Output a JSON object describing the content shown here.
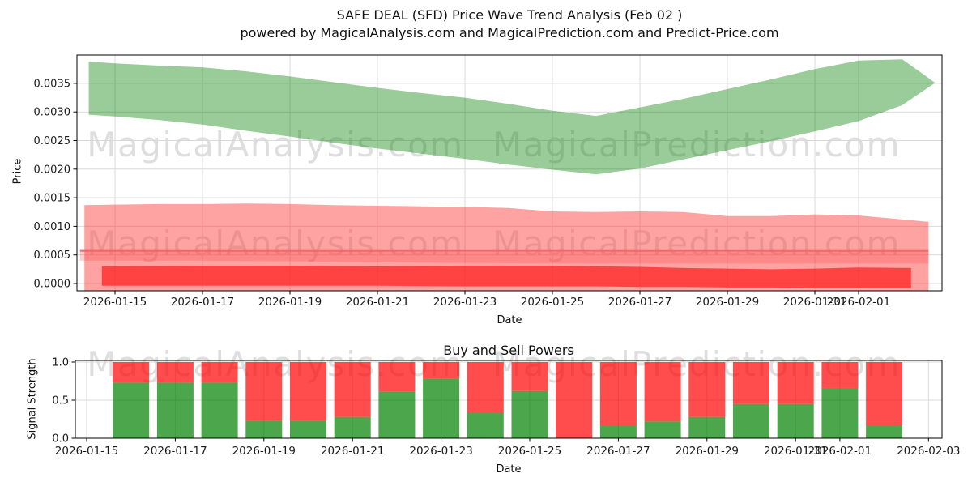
{
  "title": "SAFE DEAL (SFD) Price Wave Trend Analysis (Feb 02 )",
  "subtitle": "powered by MagicalAnalysis.com and MagicalPrediction.com and Predict-Price.com",
  "watermarks": {
    "analysis": "MagicalAnalysis.com",
    "prediction": "MagicalPrediction.com",
    "color": "rgba(0,0,0,0.13)"
  },
  "chart_data": [
    {
      "id": "price_wave",
      "type": "area",
      "xlabel": "Date",
      "ylabel": "Price",
      "ylim": [
        -0.00014,
        0.004
      ],
      "grid": true,
      "yticks": [
        {
          "label": "0.0000",
          "value": 0.0
        },
        {
          "label": "0.0005",
          "value": 0.0005
        },
        {
          "label": "0.0010",
          "value": 0.001
        },
        {
          "label": "0.0015",
          "value": 0.0015
        },
        {
          "label": "0.0020",
          "value": 0.002
        },
        {
          "label": "0.0025",
          "value": 0.0025
        },
        {
          "label": "0.0030",
          "value": 0.003
        },
        {
          "label": "0.0035",
          "value": 0.0035
        }
      ],
      "xticks": [
        {
          "label": "2026-01-15",
          "day": 15
        },
        {
          "label": "2026-01-17",
          "day": 17
        },
        {
          "label": "2026-01-19",
          "day": 19
        },
        {
          "label": "2026-01-21",
          "day": 21
        },
        {
          "label": "2026-01-23",
          "day": 23
        },
        {
          "label": "2026-01-25",
          "day": 25
        },
        {
          "label": "2026-01-27",
          "day": 27
        },
        {
          "label": "2026-01-29",
          "day": 29
        },
        {
          "label": "2026-01-31",
          "day": 31
        },
        {
          "label": "2026-02-01",
          "day": 32
        }
      ],
      "bands": [
        {
          "name": "upper-trend-band",
          "color": "rgba(0,128,0,0.4)",
          "points": [
            [
              14.4,
              0.00388,
              0.00295
            ],
            [
              15,
              0.00385,
              0.00292
            ],
            [
              16,
              0.00381,
              0.00286
            ],
            [
              17,
              0.00378,
              0.00278
            ],
            [
              18,
              0.00371,
              0.00267
            ],
            [
              19,
              0.00362,
              0.00257
            ],
            [
              20,
              0.00352,
              0.00246
            ],
            [
              21,
              0.00342,
              0.00236
            ],
            [
              22,
              0.00333,
              0.00227
            ],
            [
              23,
              0.00325,
              0.00218
            ],
            [
              24,
              0.00314,
              0.00208
            ],
            [
              25,
              0.00302,
              0.00199
            ],
            [
              26,
              0.00293,
              0.00191
            ],
            [
              27,
              0.00308,
              0.00201
            ],
            [
              28,
              0.00323,
              0.00217
            ],
            [
              29,
              0.0034,
              0.00233
            ],
            [
              30,
              0.00357,
              0.00249
            ],
            [
              31,
              0.00375,
              0.00266
            ],
            [
              32,
              0.0039,
              0.00284
            ],
            [
              33,
              0.00392,
              0.00312
            ],
            [
              33.75,
              0.00351,
              0.00351
            ]
          ]
        },
        {
          "name": "support-band-light",
          "color": "rgba(255,60,60,0.48)",
          "points": [
            [
              14.3,
              0.00137,
              -0.00012
            ],
            [
              15,
              0.00138,
              -0.00012
            ],
            [
              16,
              0.00139,
              -0.00012
            ],
            [
              17,
              0.00139,
              -0.00012
            ],
            [
              18,
              0.0014,
              -0.00012
            ],
            [
              19,
              0.00139,
              -0.00012
            ],
            [
              20,
              0.00137,
              -0.00012
            ],
            [
              21,
              0.00136,
              -0.00012
            ],
            [
              22,
              0.00135,
              -0.00012
            ],
            [
              23,
              0.00134,
              -0.00012
            ],
            [
              24,
              0.00132,
              -0.00012
            ],
            [
              25,
              0.00126,
              -0.00012
            ],
            [
              26,
              0.00125,
              -0.00012
            ],
            [
              27,
              0.00126,
              -0.00012
            ],
            [
              28,
              0.00125,
              -0.00012
            ],
            [
              29,
              0.00118,
              -0.00012
            ],
            [
              30,
              0.00118,
              -0.00012
            ],
            [
              31,
              0.00121,
              -0.00012
            ],
            [
              32,
              0.00119,
              -0.00012
            ],
            [
              33,
              0.00112,
              -0.00012
            ],
            [
              33.6,
              0.00108,
              -0.00012
            ]
          ]
        },
        {
          "name": "support-band-mid",
          "color": "rgba(255,60,60,0.25)",
          "points": [
            [
              14.2,
              0.00059,
              0.0004
            ],
            [
              17,
              0.00058,
              0.0004
            ],
            [
              19,
              0.00057,
              0.00039
            ],
            [
              21,
              0.00056,
              0.00037
            ],
            [
              23,
              0.00055,
              0.00036
            ],
            [
              25,
              0.00055,
              0.00035
            ],
            [
              27,
              0.00056,
              0.00035
            ],
            [
              29,
              0.00055,
              0.00035
            ],
            [
              31,
              0.00057,
              0.00035
            ],
            [
              33.6,
              0.00057,
              0.00035
            ]
          ]
        },
        {
          "name": "signal-band-red",
          "color": "rgba(255,30,30,0.72)",
          "points": [
            [
              14.7,
              0.0003,
              -4e-05
            ],
            [
              17,
              0.00031,
              -4e-05
            ],
            [
              19,
              0.00031,
              -4e-05
            ],
            [
              21,
              0.0003,
              -4e-05
            ],
            [
              23,
              0.00031,
              -5e-05
            ],
            [
              25,
              0.00031,
              -5e-05
            ],
            [
              26,
              0.0003,
              -5e-05
            ],
            [
              27,
              0.00029,
              -6e-05
            ],
            [
              28,
              0.00027,
              -6e-05
            ],
            [
              29,
              0.00026,
              -7e-05
            ],
            [
              30,
              0.00025,
              -7e-05
            ],
            [
              31,
              0.00026,
              -8e-05
            ],
            [
              32,
              0.00028,
              -8e-05
            ],
            [
              33.2,
              0.00027,
              -8e-05
            ]
          ]
        }
      ],
      "line": {
        "name": "support-level-line",
        "color": "rgba(240,100,100,0.9)",
        "value": 0.00057,
        "from_day": 14.2,
        "to_day": 33.6
      }
    },
    {
      "id": "buy_sell_powers",
      "type": "bar",
      "title": "Buy and Sell Powers",
      "xlabel": "Date",
      "ylabel": "Signal Strength",
      "ylim": [
        0,
        1.02
      ],
      "grid": true,
      "yticks": [
        {
          "label": "0.0",
          "value": 0.0
        },
        {
          "label": "0.5",
          "value": 0.5
        },
        {
          "label": "1.0",
          "value": 1.0
        }
      ],
      "xticks": [
        {
          "label": "2026-01-15",
          "day": 15
        },
        {
          "label": "2026-01-17",
          "day": 17
        },
        {
          "label": "2026-01-19",
          "day": 19
        },
        {
          "label": "2026-01-21",
          "day": 21
        },
        {
          "label": "2026-01-23",
          "day": 23
        },
        {
          "label": "2026-01-25",
          "day": 25
        },
        {
          "label": "2026-01-27",
          "day": 27
        },
        {
          "label": "2026-01-29",
          "day": 29
        },
        {
          "label": "2026-01-31",
          "day": 31
        },
        {
          "label": "2026-02-01",
          "day": 32
        },
        {
          "label": "2026-02-03",
          "day": 34
        }
      ],
      "colors": {
        "buy": "rgba(0,128,0,0.7)",
        "sell": "rgba(255,0,0,0.7)"
      },
      "bars": [
        {
          "date": "2026-01-16",
          "buy": 0.73,
          "sell": 0.27
        },
        {
          "date": "2026-01-17",
          "buy": 0.73,
          "sell": 0.27
        },
        {
          "date": "2026-01-18",
          "buy": 0.73,
          "sell": 0.27
        },
        {
          "date": "2026-01-19",
          "buy": 0.23,
          "sell": 0.77
        },
        {
          "date": "2026-01-20",
          "buy": 0.23,
          "sell": 0.77
        },
        {
          "date": "2026-01-21",
          "buy": 0.28,
          "sell": 0.72
        },
        {
          "date": "2026-01-22",
          "buy": 0.61,
          "sell": 0.39
        },
        {
          "date": "2026-01-23",
          "buy": 0.78,
          "sell": 0.22
        },
        {
          "date": "2026-01-24",
          "buy": 0.33,
          "sell": 0.67
        },
        {
          "date": "2026-01-25",
          "buy": 0.62,
          "sell": 0.38
        },
        {
          "date": "2026-01-26",
          "buy": 0.0,
          "sell": 1.0
        },
        {
          "date": "2026-01-27",
          "buy": 0.17,
          "sell": 0.83
        },
        {
          "date": "2026-01-28",
          "buy": 0.22,
          "sell": 0.78
        },
        {
          "date": "2026-01-29",
          "buy": 0.28,
          "sell": 0.72
        },
        {
          "date": "2026-01-30",
          "buy": 0.45,
          "sell": 0.55
        },
        {
          "date": "2026-01-31",
          "buy": 0.45,
          "sell": 0.55
        },
        {
          "date": "2026-02-01",
          "buy": 0.66,
          "sell": 0.34
        },
        {
          "date": "2026-02-02",
          "buy": 0.17,
          "sell": 0.83
        }
      ]
    }
  ],
  "style": {
    "grid_color": "#d9d9d9",
    "spine_color": "#000000",
    "tick_label_color": "#1a1a1a"
  }
}
